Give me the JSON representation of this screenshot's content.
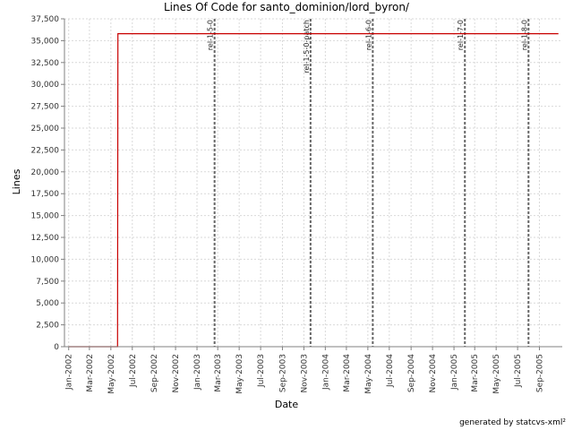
{
  "chart_data": {
    "type": "line",
    "title": "Lines Of Code for santo_dominion/lord_byron/",
    "xlabel": "Date",
    "ylabel": "Lines",
    "ylim": [
      0,
      37500
    ],
    "y_ticks": [
      0,
      2500,
      5000,
      7500,
      10000,
      12500,
      15000,
      17500,
      20000,
      22500,
      25000,
      27500,
      30000,
      32500,
      35000,
      37500
    ],
    "y_tick_labels": [
      "0",
      "2,500",
      "5,000",
      "7,500",
      "10,000",
      "12,500",
      "15,000",
      "17,500",
      "20,000",
      "22,500",
      "25,000",
      "27,500",
      "30,000",
      "32,500",
      "35,000",
      "37,500"
    ],
    "x_range": [
      "2001-12-20",
      "2005-11-05"
    ],
    "x_ticks": [
      "2002-01-01",
      "2002-03-01",
      "2002-05-01",
      "2002-07-01",
      "2002-09-01",
      "2002-11-01",
      "2003-01-01",
      "2003-03-01",
      "2003-05-01",
      "2003-07-01",
      "2003-09-01",
      "2003-11-01",
      "2004-01-01",
      "2004-03-01",
      "2004-05-01",
      "2004-07-01",
      "2004-09-01",
      "2004-11-01",
      "2005-01-01",
      "2005-03-01",
      "2005-05-01",
      "2005-07-01",
      "2005-09-01"
    ],
    "x_tick_labels": [
      "Jan-2002",
      "Mar-2002",
      "May-2002",
      "Jul-2002",
      "Sep-2002",
      "Nov-2002",
      "Jan-2003",
      "Mar-2003",
      "May-2003",
      "Jul-2003",
      "Sep-2003",
      "Nov-2003",
      "Jan-2004",
      "Mar-2004",
      "May-2004",
      "Jul-2004",
      "Sep-2004",
      "Nov-2004",
      "Jan-2005",
      "Mar-2005",
      "May-2005",
      "Jul-2005",
      "Sep-2005"
    ],
    "grid": true,
    "series": [
      {
        "color": "#c80000",
        "x": [
          "2002-01-01",
          "2002-05-20",
          "2002-05-21",
          "2005-10-25"
        ],
        "y": [
          0,
          0,
          35800,
          35800
        ]
      }
    ],
    "markers": [
      {
        "label": "rel-1-5-0",
        "date": "2003-02-20"
      },
      {
        "label": "rel-1-5-0-patch",
        "date": "2003-11-20"
      },
      {
        "label": "rel-1-6-0",
        "date": "2004-05-15"
      },
      {
        "label": "rel-1-7-0",
        "date": "2005-02-01"
      },
      {
        "label": "rel-1-8-0",
        "date": "2005-08-01"
      }
    ]
  },
  "footer": "generated by statcvs-xml²"
}
